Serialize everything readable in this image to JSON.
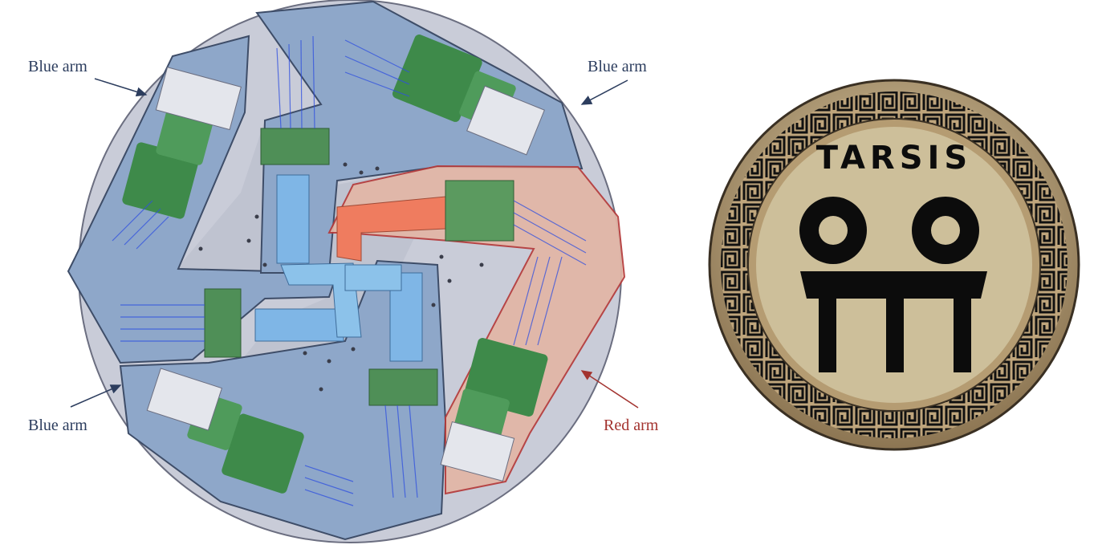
{
  "callouts": {
    "top_left": "Blue arm",
    "top_right": "Blue arm",
    "bottom_left": "Blue arm",
    "bottom_right": "Red arm"
  },
  "logo": {
    "text": "TARSIS"
  },
  "colors": {
    "plate": "#c9ccd8",
    "blue_region": "#8ea7c9",
    "red_region": "#e3b6a6",
    "blue_outline": "#3e4d68",
    "red_outline": "#b53a3a",
    "blue_label": "#2c3d5e",
    "red_label": "#a3332f",
    "lens_green": "#3e8a4a",
    "beam_blue": "#2f4fe0",
    "pipe_blue": "#7fb6e6",
    "pipe_red": "#ef7c5f",
    "logo_gold": "#b9a079",
    "logo_face": "#cdbf9a",
    "logo_black": "#0c0c0c"
  },
  "icons": {
    "arrow": "arrow-icon",
    "logo": "tarsis-logo-icon"
  }
}
